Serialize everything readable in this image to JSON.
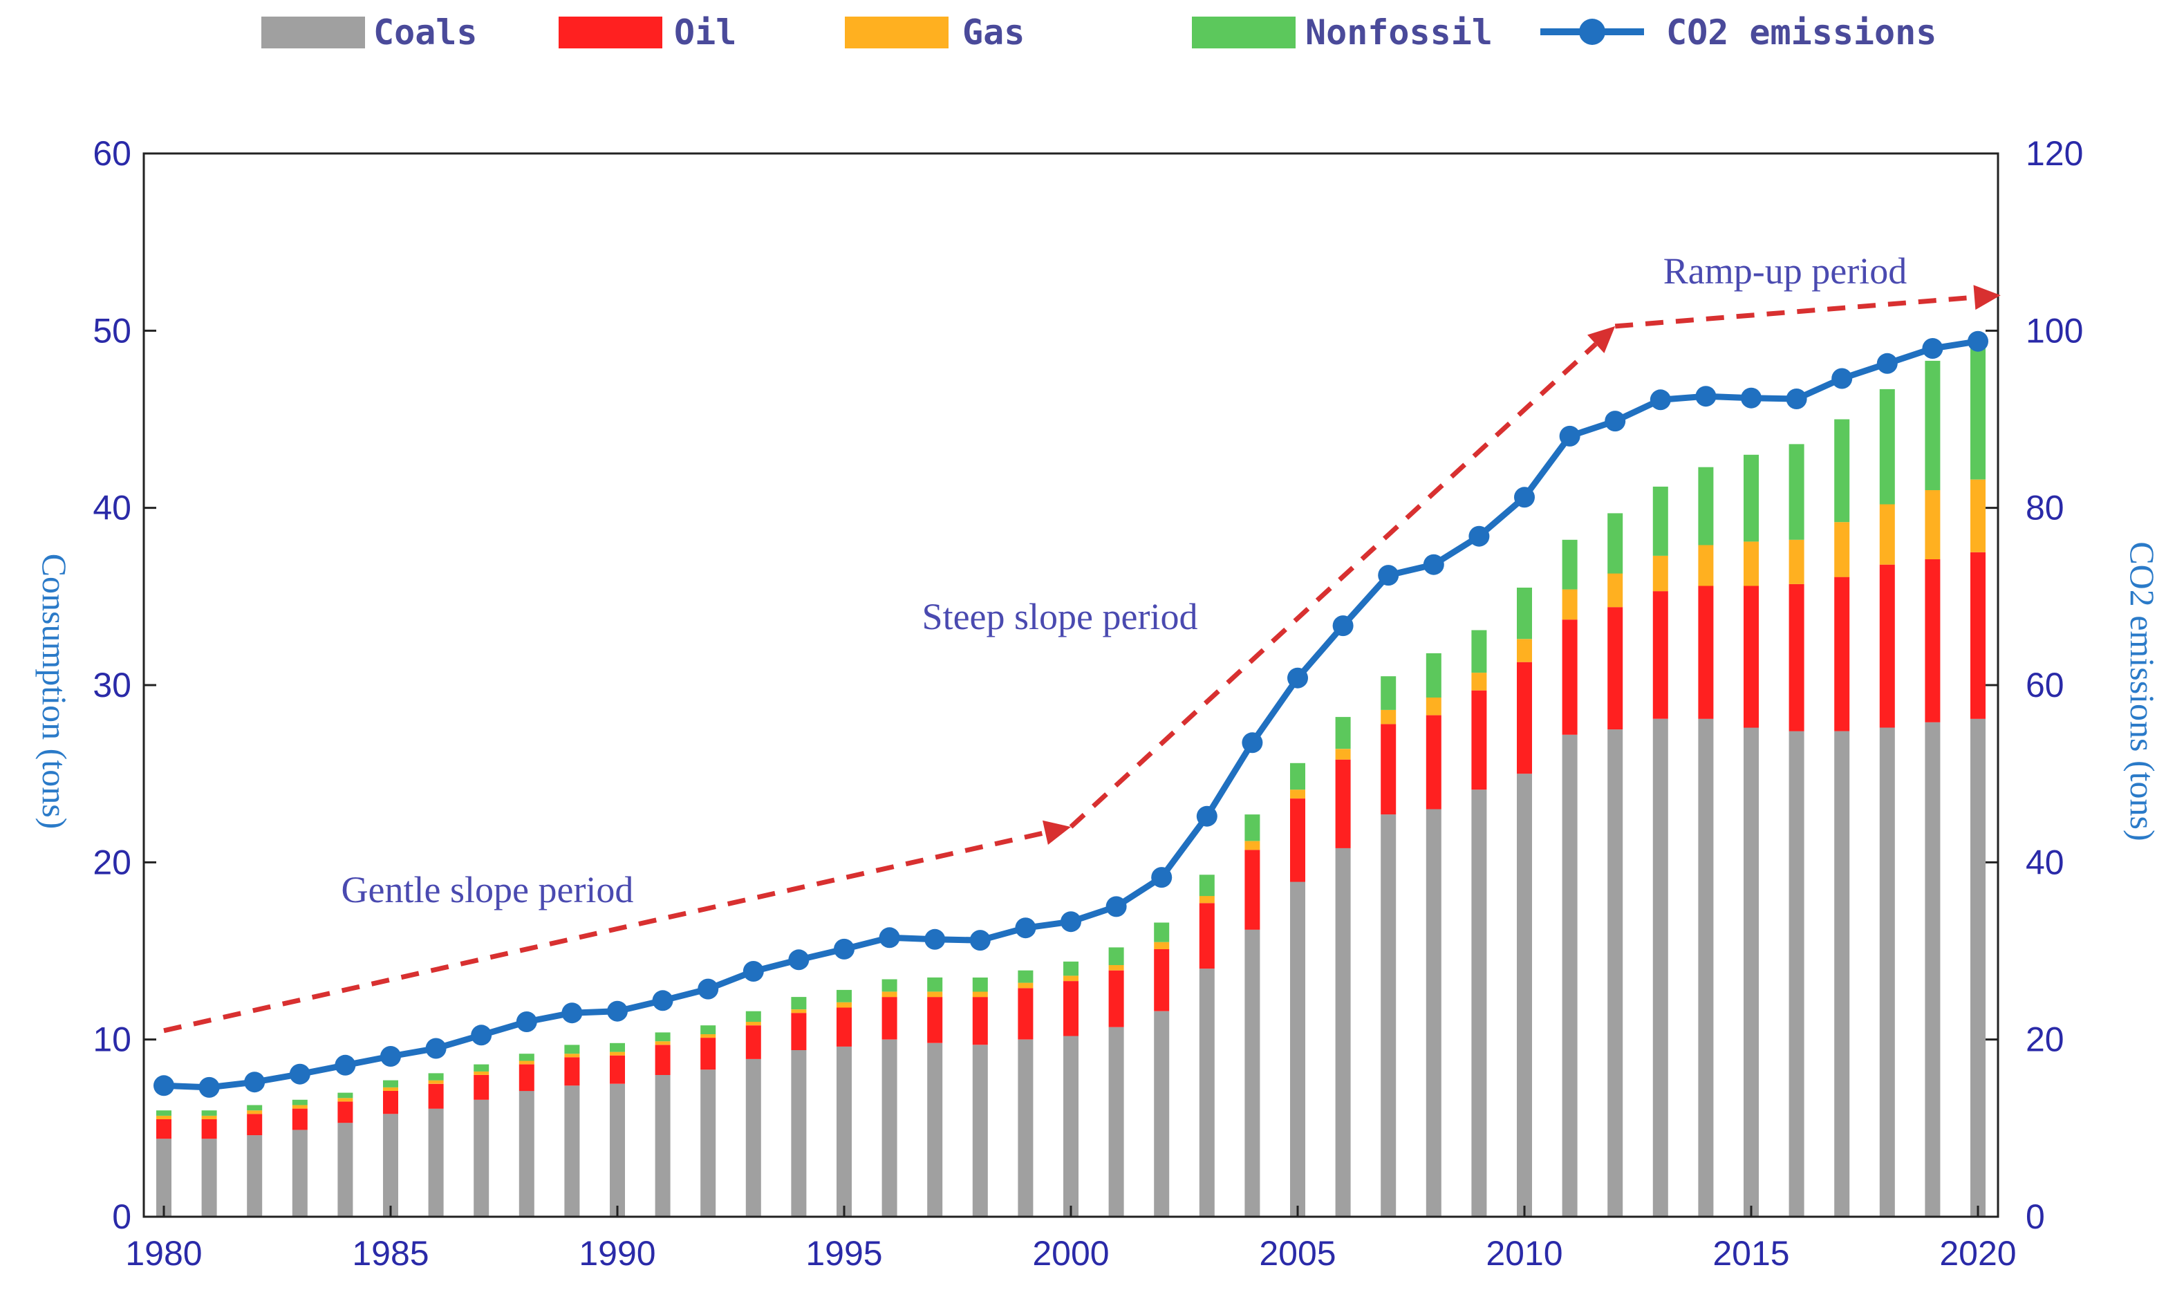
{
  "chart_data": {
    "type": "bar",
    "stacked": true,
    "x": [
      1980,
      1981,
      1982,
      1983,
      1984,
      1985,
      1986,
      1987,
      1988,
      1989,
      1990,
      1991,
      1992,
      1993,
      1994,
      1995,
      1996,
      1997,
      1998,
      1999,
      2000,
      2001,
      2002,
      2003,
      2004,
      2005,
      2006,
      2007,
      2008,
      2009,
      2010,
      2011,
      2012,
      2013,
      2014,
      2015,
      2016,
      2017,
      2018,
      2019,
      2020
    ],
    "x_tick_labels": [
      "1980",
      "1985",
      "1990",
      "1995",
      "2000",
      "2005",
      "2010",
      "2015",
      "2020"
    ],
    "x_tick_values": [
      1980,
      1985,
      1990,
      1995,
      2000,
      2005,
      2010,
      2015,
      2020
    ],
    "series": [
      {
        "name": "Coals",
        "color": "#a0a0a0",
        "axis": "left",
        "values": [
          4.4,
          4.4,
          4.6,
          4.9,
          5.3,
          5.8,
          6.1,
          6.6,
          7.1,
          7.4,
          7.5,
          8.0,
          8.3,
          8.9,
          9.4,
          9.6,
          10.0,
          9.8,
          9.7,
          10.0,
          10.2,
          10.7,
          11.6,
          14.0,
          16.2,
          18.9,
          20.8,
          22.7,
          23.0,
          24.1,
          25.0,
          27.2,
          27.5,
          28.1,
          28.1,
          27.6,
          27.4,
          27.4,
          27.6,
          27.9,
          28.1
        ]
      },
      {
        "name": "Oil",
        "color": "#ff2020",
        "axis": "left",
        "values": [
          1.1,
          1.1,
          1.2,
          1.2,
          1.2,
          1.3,
          1.4,
          1.4,
          1.5,
          1.6,
          1.6,
          1.7,
          1.8,
          1.9,
          2.1,
          2.2,
          2.4,
          2.6,
          2.7,
          2.9,
          3.1,
          3.2,
          3.5,
          3.7,
          4.5,
          4.7,
          5.0,
          5.1,
          5.3,
          5.6,
          6.3,
          6.5,
          6.9,
          7.2,
          7.5,
          8.0,
          8.3,
          8.7,
          9.2,
          9.2,
          9.4
        ]
      },
      {
        "name": "Gas",
        "color": "#ffb020",
        "axis": "left",
        "values": [
          0.2,
          0.2,
          0.2,
          0.2,
          0.2,
          0.2,
          0.2,
          0.2,
          0.2,
          0.2,
          0.2,
          0.2,
          0.2,
          0.2,
          0.2,
          0.3,
          0.3,
          0.3,
          0.3,
          0.3,
          0.3,
          0.3,
          0.4,
          0.4,
          0.5,
          0.5,
          0.6,
          0.8,
          1.0,
          1.0,
          1.3,
          1.7,
          1.9,
          2.0,
          2.3,
          2.5,
          2.5,
          3.1,
          3.4,
          3.9,
          4.1
        ]
      },
      {
        "name": "Nonfossil",
        "color": "#5cc85c",
        "axis": "left",
        "values": [
          0.3,
          0.3,
          0.3,
          0.3,
          0.3,
          0.4,
          0.4,
          0.4,
          0.4,
          0.5,
          0.5,
          0.5,
          0.5,
          0.6,
          0.7,
          0.7,
          0.7,
          0.8,
          0.8,
          0.7,
          0.8,
          1.0,
          1.1,
          1.2,
          1.5,
          1.5,
          1.8,
          1.9,
          2.5,
          2.4,
          2.9,
          2.8,
          3.4,
          3.9,
          4.4,
          4.9,
          5.4,
          5.8,
          6.5,
          7.3,
          7.8
        ]
      },
      {
        "name": "CO2 emissions",
        "color": "#2070c0",
        "axis": "right",
        "type": "line",
        "values": [
          14.8,
          14.6,
          15.2,
          16.1,
          17.1,
          18.1,
          19.0,
          20.5,
          22.0,
          23.0,
          23.2,
          24.4,
          25.7,
          27.7,
          29.0,
          30.2,
          31.5,
          31.3,
          31.2,
          32.6,
          33.3,
          35.0,
          38.3,
          45.2,
          53.5,
          60.8,
          66.7,
          72.4,
          73.6,
          76.8,
          81.2,
          88.1,
          89.8,
          92.2,
          92.6,
          92.4,
          92.3,
          94.6,
          96.3,
          98.0,
          98.8
        ]
      }
    ],
    "legend": [
      "Coals",
      "Oil",
      "Gas",
      "Nonfossil",
      "CO2 emissions"
    ],
    "legend_position": "top",
    "ylabel": "Consumption (tons)",
    "ylabel_right": "CO2 emissions (tons)",
    "ylim": [
      0,
      60
    ],
    "ylim_right": [
      0,
      120
    ],
    "xlim": [
      1980,
      2020
    ],
    "y_ticks": [
      "0",
      "10",
      "20",
      "30",
      "40",
      "50",
      "60"
    ],
    "y_ticks_right": [
      "0",
      "20",
      "40",
      "60",
      "80",
      "100",
      "120"
    ],
    "annotations": [
      {
        "text": "Gentle slope period",
        "arrow_from": [
          1980,
          21
        ],
        "arrow_to": [
          2000,
          44
        ]
      },
      {
        "text": "Steep slope period",
        "arrow_from": [
          2000,
          44
        ],
        "arrow_to": [
          2012,
          100.5
        ]
      },
      {
        "text": "Ramp-up period",
        "arrow_from": [
          2012,
          100.5
        ],
        "arrow_to": [
          2020.5,
          104
        ]
      }
    ],
    "arrow_color": "#d83030"
  }
}
